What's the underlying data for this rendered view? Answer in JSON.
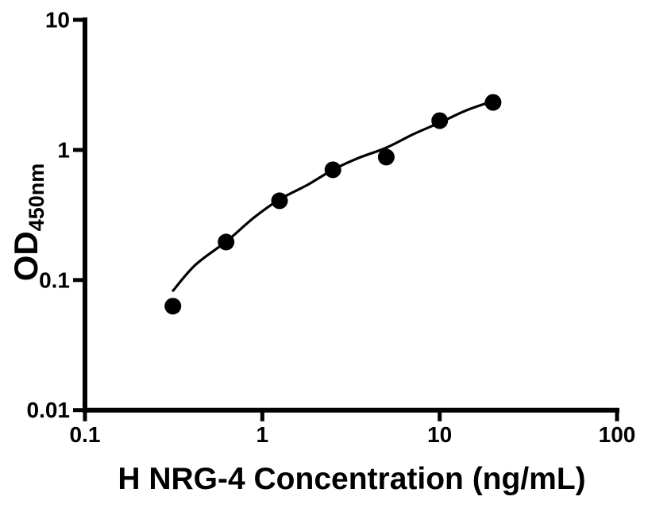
{
  "figure": {
    "background_color": "#ffffff",
    "axis_color": "#000000",
    "marker_color": "#000000",
    "curve_color": "#000000"
  },
  "chart_data": {
    "type": "scatter",
    "title": "",
    "xlabel": "H NRG-4 Concentration (ng/mL)",
    "ylabel": "OD",
    "ylabel_subscript": "450nm",
    "x_scale": "log",
    "y_scale": "log",
    "xlim": [
      0.1,
      100
    ],
    "ylim": [
      0.01,
      10
    ],
    "grid": false,
    "legend": false,
    "x_ticks": [
      {
        "value": 0.1,
        "label": "0.1"
      },
      {
        "value": 1,
        "label": "1"
      },
      {
        "value": 10,
        "label": "10"
      },
      {
        "value": 100,
        "label": "100"
      }
    ],
    "y_ticks": [
      {
        "value": 10,
        "label": "10"
      },
      {
        "value": 1,
        "label": "1"
      },
      {
        "value": 0.1,
        "label": "0.1"
      },
      {
        "value": 0.01,
        "label": "0.01"
      }
    ],
    "series": [
      {
        "name": "standard-curve-points",
        "x": [
          0.313,
          0.625,
          1.25,
          2.5,
          5,
          10,
          20
        ],
        "y": [
          0.063,
          0.196,
          0.407,
          0.704,
          0.881,
          1.68,
          2.32
        ]
      }
    ],
    "fit_curve": {
      "name": "four-parameter-fit-line",
      "x": [
        0.314,
        0.42,
        0.63,
        0.9,
        1.26,
        1.8,
        2.5,
        3.5,
        5.0,
        7.1,
        10.1,
        14.2,
        20.3
      ],
      "y": [
        0.083,
        0.131,
        0.199,
        0.303,
        0.419,
        0.539,
        0.704,
        0.869,
        1.04,
        1.32,
        1.63,
        2.02,
        2.39
      ]
    }
  }
}
